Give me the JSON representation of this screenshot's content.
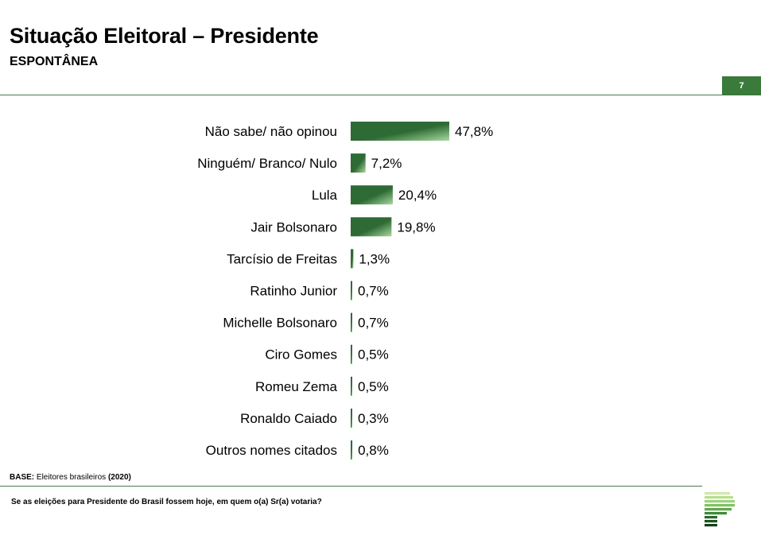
{
  "header": {
    "title": "Situação Eleitoral – Presidente",
    "subtitle": "ESPONTÂNEA",
    "page_number": "7"
  },
  "footer": {
    "base_label": "BASE:",
    "base_text": "Eleitores brasileiros",
    "base_year": "(2020)",
    "question": "Se as eleições para Presidente do Brasil fossem hoje, em quem o(a) Sr(a) votaria?"
  },
  "colors": {
    "bar_dark": "#2e6b34",
    "bar_light": "#a9d8a0",
    "accent": "#3a7a3a"
  },
  "chart_data": {
    "type": "bar",
    "orientation": "horizontal",
    "categories": [
      "Não sabe/ não opinou",
      "Ninguém/ Branco/ Nulo",
      "Lula",
      "Jair Bolsonaro",
      "Tarcísio de Freitas",
      "Ratinho Junior",
      "Michelle Bolsonaro",
      "Ciro Gomes",
      "Romeu Zema",
      "Ronaldo Caiado",
      "Outros nomes citados"
    ],
    "values": [
      47.8,
      7.2,
      20.4,
      19.8,
      1.3,
      0.7,
      0.7,
      0.5,
      0.5,
      0.3,
      0.8
    ],
    "value_labels": [
      "47,8%",
      "7,2%",
      "20,4%",
      "19,8%",
      "1,3%",
      "0,7%",
      "0,7%",
      "0,5%",
      "0,5%",
      "0,3%",
      "0,8%"
    ],
    "xlim": [
      0,
      100
    ],
    "grid": false,
    "legend": "none"
  }
}
